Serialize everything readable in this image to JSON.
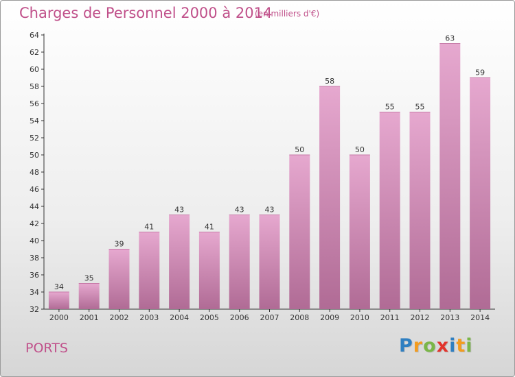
{
  "title": "Charges de Personnel 2000 à 2014",
  "subtitle": "(en milliers d'€)",
  "commune": "PORTS",
  "brand": {
    "letters": [
      "P",
      "r",
      "o",
      "x",
      "i",
      "t",
      "i"
    ],
    "colors": [
      "#2f7fc1",
      "#f39c1f",
      "#7ab648",
      "#e2342c",
      "#2f7fc1",
      "#f39c1f",
      "#7ab648"
    ]
  },
  "colors": {
    "bar_top": "#e6a8cf",
    "bar_bottom": "#b06b95",
    "accent": "#c0508a"
  },
  "chart_data": {
    "type": "bar",
    "title": "Charges de Personnel 2000 à 2014",
    "subtitle": "(en milliers d'€)",
    "categories": [
      "2000",
      "2001",
      "2002",
      "2003",
      "2004",
      "2005",
      "2006",
      "2007",
      "2008",
      "2009",
      "2010",
      "2011",
      "2012",
      "2013",
      "2014"
    ],
    "values": [
      34,
      35,
      39,
      41,
      43,
      41,
      43,
      43,
      50,
      58,
      50,
      55,
      55,
      63,
      59
    ],
    "ylim": [
      32,
      64
    ],
    "yticks": [
      32,
      34,
      36,
      38,
      40,
      42,
      44,
      46,
      48,
      50,
      52,
      54,
      56,
      58,
      60,
      62,
      64
    ],
    "grid": false,
    "xlabel": "",
    "ylabel": ""
  }
}
